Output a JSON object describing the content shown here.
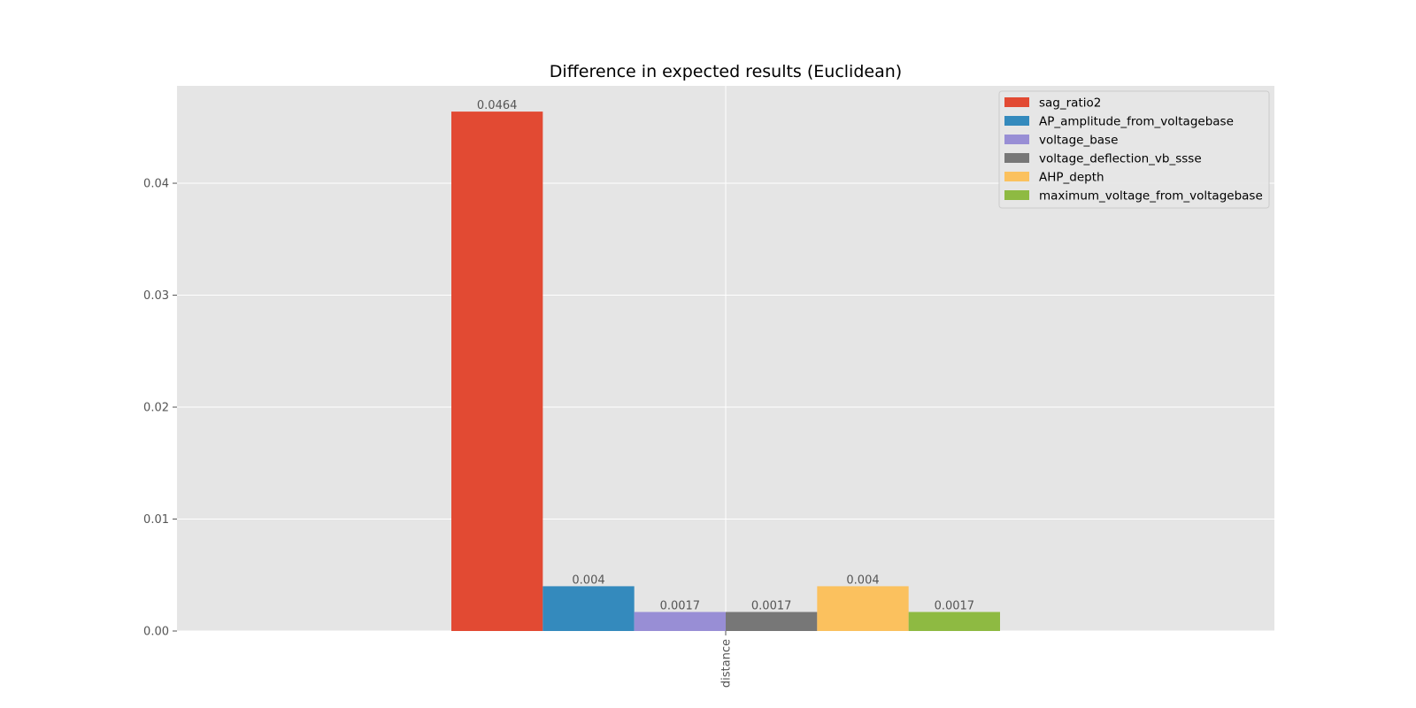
{
  "chart_data": {
    "type": "bar",
    "title": "Difference in expected results (Euclidean)",
    "categories": [
      "distance"
    ],
    "ylim": [
      0,
      0.0487
    ],
    "yticks": [
      "0.00",
      "0.01",
      "0.02",
      "0.03",
      "0.04"
    ],
    "ytick_values": [
      0,
      0.01,
      0.02,
      0.03,
      0.04
    ],
    "grid": true,
    "legend_position": "top-right",
    "series": [
      {
        "name": "sag_ratio2",
        "values": [
          0.0464
        ],
        "label": "0.0464",
        "color": "#E24A33"
      },
      {
        "name": "AP_amplitude_from_voltagebase",
        "values": [
          0.004
        ],
        "label": "0.004",
        "color": "#348ABD"
      },
      {
        "name": "voltage_base",
        "values": [
          0.0017
        ],
        "label": "0.0017",
        "color": "#988ED5"
      },
      {
        "name": "voltage_deflection_vb_ssse",
        "values": [
          0.0017
        ],
        "label": "0.0017",
        "color": "#777777"
      },
      {
        "name": "AHP_depth",
        "values": [
          0.004
        ],
        "label": "0.004",
        "color": "#FBC15E"
      },
      {
        "name": "maximum_voltage_from_voltagebase",
        "values": [
          0.0017
        ],
        "label": "0.0017",
        "color": "#8EBA42"
      }
    ]
  }
}
